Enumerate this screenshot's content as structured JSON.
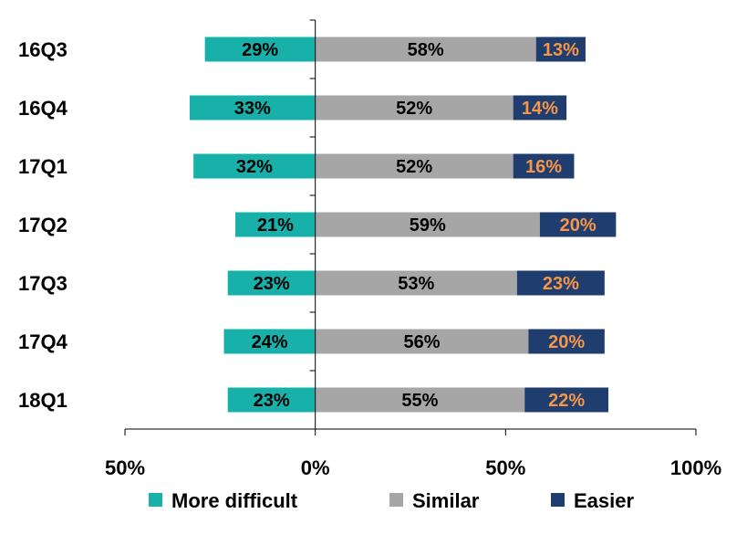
{
  "chart_data": {
    "type": "bar",
    "orientation": "horizontal",
    "stacked": "diverging",
    "categories": [
      "16Q3",
      "16Q4",
      "17Q1",
      "17Q2",
      "17Q3",
      "17Q4",
      "18Q1"
    ],
    "series": [
      {
        "name": "More difficult",
        "values": [
          29,
          33,
          32,
          21,
          23,
          24,
          23
        ],
        "labels": [
          "29%",
          "33%",
          "32%",
          "21%",
          "23%",
          "24%",
          "23%"
        ],
        "color": "#17b1aa",
        "label_color": "#000000",
        "direction": "negative"
      },
      {
        "name": "Similar",
        "values": [
          58,
          52,
          52,
          59,
          53,
          56,
          55
        ],
        "labels": [
          "58%",
          "52%",
          "52%",
          "59%",
          "53%",
          "56%",
          "55%"
        ],
        "color": "#a6a6a6",
        "label_color": "#000000",
        "direction": "positive"
      },
      {
        "name": "Easier",
        "values": [
          13,
          14,
          16,
          20,
          23,
          20,
          22
        ],
        "labels": [
          "13%",
          "14%",
          "16%",
          "20%",
          "23%",
          "20%",
          "22%"
        ],
        "color": "#1f3d6e",
        "label_color": "#f79646",
        "direction": "positive"
      }
    ],
    "xlim": [
      -50,
      100
    ],
    "xticks": [
      {
        "value": -50,
        "label": "50%"
      },
      {
        "value": 0,
        "label": "0%"
      },
      {
        "value": 50,
        "label": "50%"
      },
      {
        "value": 100,
        "label": "100%"
      }
    ],
    "legend": "bottom",
    "grid": false
  }
}
